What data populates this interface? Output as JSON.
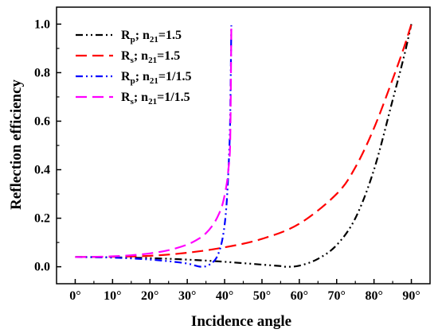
{
  "chart_data": {
    "type": "line",
    "title": "",
    "xlabel": "Incidence angle",
    "ylabel": "Reflection efficiency",
    "xlim": [
      -5,
      95
    ],
    "ylim": [
      -0.07,
      1.07
    ],
    "xticks": [
      0,
      10,
      20,
      30,
      40,
      50,
      60,
      70,
      80,
      90
    ],
    "xtick_labels": [
      "0°",
      "10°",
      "20°",
      "30°",
      "40°",
      "50°",
      "60°",
      "70°",
      "80°",
      "90°"
    ],
    "yticks": [
      0.0,
      0.2,
      0.4,
      0.6,
      0.8,
      1.0
    ],
    "ytick_labels": [
      "0.0",
      "0.2",
      "0.4",
      "0.6",
      "0.8",
      "1.0"
    ],
    "grid": false,
    "legend_position": "top-left",
    "series": [
      {
        "name": "Rp; n21=1.5",
        "legend": {
          "main": "R",
          "sub1": "p",
          "mid": "; n",
          "sub2": "21",
          "tail": "=1.5"
        },
        "color": "#000000",
        "style": "dash-dot-dot",
        "x": [
          0,
          5,
          10,
          15,
          20,
          25,
          30,
          35,
          40,
          45,
          50,
          55,
          56.3,
          60,
          65,
          70,
          75,
          80,
          85,
          88,
          90
        ],
        "y": [
          0.04,
          0.0397,
          0.0389,
          0.0375,
          0.0355,
          0.0328,
          0.0294,
          0.0253,
          0.0204,
          0.0147,
          0.0087,
          0.0028,
          0.0,
          0.0042,
          0.0326,
          0.0894,
          0.1999,
          0.4003,
          0.6876,
          0.8652,
          1.0
        ]
      },
      {
        "name": "Rs; n21=1.5",
        "legend": {
          "main": "R",
          "sub1": "s",
          "mid": "; n",
          "sub2": "21",
          "tail": "=1.5"
        },
        "color": "#ff0000",
        "style": "dash",
        "x": [
          0,
          10,
          20,
          30,
          40,
          50,
          60,
          70,
          75,
          80,
          85,
          88,
          90
        ],
        "y": [
          0.04,
          0.0413,
          0.045,
          0.0577,
          0.0799,
          0.1149,
          0.1772,
          0.3003,
          0.4097,
          0.5714,
          0.7733,
          0.903,
          1.0
        ]
      },
      {
        "name": "Rp; n21=1/1.5",
        "legend": {
          "main": "R",
          "sub1": "p",
          "mid": "; n",
          "sub2": "21",
          "tail": "=1/1.5"
        },
        "color": "#0000ff",
        "style": "dash-dot-dot",
        "x": [
          0,
          5,
          10,
          15,
          20,
          25,
          30,
          33.7,
          36,
          38,
          39.5,
          40.5,
          41.2,
          41.5,
          41.8
        ],
        "y": [
          0.04,
          0.0394,
          0.0376,
          0.0344,
          0.0296,
          0.0228,
          0.0132,
          0.0,
          0.0093,
          0.0424,
          0.1209,
          0.2529,
          0.4604,
          0.6236,
          0.995
        ]
      },
      {
        "name": "Rs; n21=1/1.5",
        "legend": {
          "main": "R",
          "sub1": "s",
          "mid": "; n",
          "sub2": "21",
          "tail": "=1/1.5"
        },
        "color": "#ff00ff",
        "style": "dash",
        "x": [
          0,
          5,
          10,
          15,
          20,
          25,
          30,
          33,
          35,
          37,
          38.5,
          39.5,
          40.5,
          41,
          41.5,
          41.8
        ],
        "y": [
          0.04,
          0.0407,
          0.043,
          0.0474,
          0.0551,
          0.0681,
          0.0914,
          0.1148,
          0.1382,
          0.1753,
          0.2184,
          0.261,
          0.3355,
          0.3997,
          0.5223,
          0.995
        ]
      }
    ]
  }
}
